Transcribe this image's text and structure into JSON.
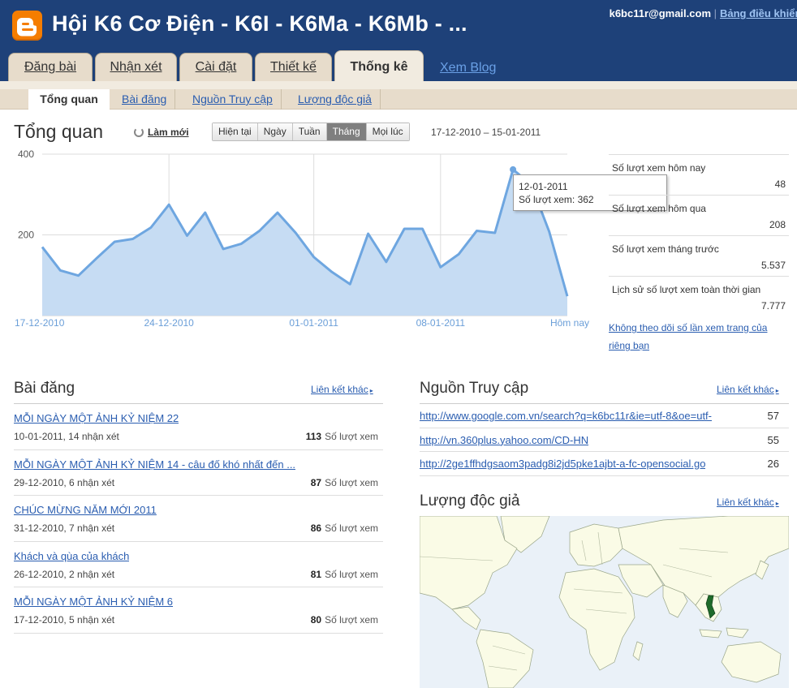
{
  "header": {
    "blog_title": "Hội K6 Cơ Điện - K6I - K6Ma - K6Mb - ...",
    "user_email": "k6bc11r@gmail.com",
    "separator": "|",
    "dashboard_link": "Bảng điều khiển",
    "logo_icon": "blogger-logo-icon",
    "logo_color": "#f57d00",
    "bar_color": "#1e4179"
  },
  "tabs": [
    {
      "label": "Đăng bài"
    },
    {
      "label": "Nhận xét"
    },
    {
      "label": "Cài đặt"
    },
    {
      "label": "Thiết kế"
    },
    {
      "label": "Thống kê",
      "active": true
    }
  ],
  "view_blog": "Xem Blog",
  "subtabs": [
    {
      "label": "Tổng quan",
      "active": true
    },
    {
      "label": "Bài đăng"
    },
    {
      "label": "Nguồn Truy cập"
    },
    {
      "label": "Lượng độc giả"
    }
  ],
  "overview": {
    "title": "Tổng quan",
    "refresh_label": "Làm mới",
    "refresh_icon": "refresh-icon",
    "range_buttons": [
      "Hiện tại",
      "Ngày",
      "Tuần",
      "Tháng",
      "Mọi lúc"
    ],
    "active_range": "Tháng",
    "date_range": "17-12-2010 – 15-01-2011"
  },
  "chart_data": {
    "type": "area",
    "ylim": [
      0,
      400
    ],
    "yticks": [
      "400",
      "200"
    ],
    "xticks": [
      "17-12-2010",
      "24-12-2010",
      "01-01-2011",
      "08-01-2011",
      "Hôm nay"
    ],
    "x": [
      "17-12-2010",
      "18-12-2010",
      "19-12-2010",
      "20-12-2010",
      "21-12-2010",
      "22-12-2010",
      "23-12-2010",
      "24-12-2010",
      "25-12-2010",
      "26-12-2010",
      "27-12-2010",
      "28-12-2010",
      "29-12-2010",
      "30-12-2010",
      "31-12-2010",
      "01-01-2011",
      "02-01-2011",
      "03-01-2011",
      "04-01-2011",
      "05-01-2011",
      "06-01-2011",
      "07-01-2011",
      "08-01-2011",
      "09-01-2011",
      "10-01-2011",
      "11-01-2011",
      "12-01-2011",
      "13-01-2011",
      "14-01-2011",
      "15-01-2011"
    ],
    "values": [
      170,
      112,
      99,
      142,
      183,
      190,
      218,
      275,
      198,
      255,
      165,
      178,
      210,
      255,
      205,
      145,
      108,
      78,
      203,
      133,
      215,
      215,
      120,
      152,
      210,
      205,
      362,
      325,
      208,
      48
    ],
    "color": "#6ea6e0",
    "fill": "#c6dcf3",
    "tooltip": {
      "date": "12-01-2011",
      "text": "Số lượt xem: 362"
    }
  },
  "stats": [
    {
      "label": "Số lượt xem hôm nay",
      "value": "48"
    },
    {
      "label": "Số lượt xem hôm qua",
      "value": "208"
    },
    {
      "label": "Số lượt xem tháng trước",
      "value": "5.537"
    },
    {
      "label": "Lịch sử số lượt xem toàn thời gian",
      "value": "7.777"
    }
  ],
  "stats_optout": "Không theo dõi số lần xem trang của riêng bạn",
  "posts": {
    "title": "Bài đăng",
    "more": "Liên kết khác",
    "views_suffix": "Số lượt xem",
    "items": [
      {
        "title": "MỖI NGÀY MỘT ẢNH KỶ NIỆM 22",
        "meta": "10-01-2011, 14 nhận xét",
        "views": "113"
      },
      {
        "title": "MỖI NGÀY MỘT ẢNH KỶ NIỆM 14 - câu đố khó nhất đến ...",
        "meta": "29-12-2010, 6 nhận xét",
        "views": "87"
      },
      {
        "title": "CHÚC MỪNG NĂM MỚI 2011",
        "meta": "31-12-2010, 7 nhận xét",
        "views": "86"
      },
      {
        "title": "Khách và qùa của khách",
        "meta": "26-12-2010, 2 nhận xét",
        "views": "81"
      },
      {
        "title": "MỖI NGÀY MỘT ẢNH KỶ NIỆM 6",
        "meta": "17-12-2010, 5 nhận xét",
        "views": "80"
      }
    ]
  },
  "sources": {
    "title": "Nguồn Truy cập",
    "more": "Liên kết khác",
    "items": [
      {
        "url": "http://www.google.com.vn/search?q=k6bc11r&ie=utf-8&oe=utf-",
        "count": "57"
      },
      {
        "url": "http://vn.360plus.yahoo.com/CD-HN",
        "count": "55"
      },
      {
        "url": "http://2ge1ffhdgsaom3padg8i2jd5pke1ajbt-a-fc-opensocial.go",
        "count": "26"
      }
    ]
  },
  "audience": {
    "title": "Lượng độc giả",
    "more": "Liên kết khác",
    "map_icon": "world-map",
    "highlight_color": "#1f6b2a",
    "land_color": "#fafbe6",
    "sea_color": "#eaf1f8"
  }
}
